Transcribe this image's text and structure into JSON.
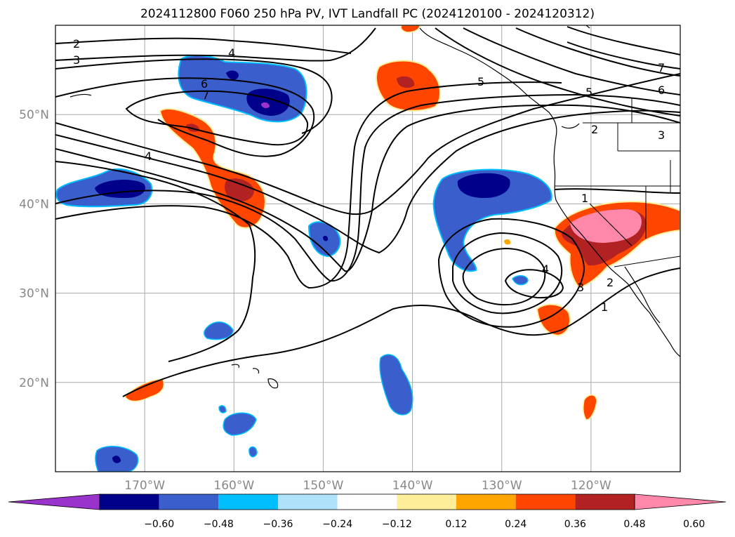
{
  "title": "2024112800 F060 250 hPa PV, IVT Landfall PC (2024120100 - 2024120312)",
  "map": {
    "lon_range": [
      -180,
      -110
    ],
    "lat_range": [
      10,
      60
    ],
    "lon_ticks": [
      -170,
      -160,
      -150,
      -140,
      -130,
      -120
    ],
    "lat_ticks": [
      20,
      30,
      40,
      50
    ],
    "lon_labels": [
      "170°W",
      "160°W",
      "150°W",
      "140°W",
      "130°W",
      "120°W"
    ],
    "lat_labels": [
      "20°N",
      "30°N",
      "40°N",
      "50°N"
    ],
    "grid": true,
    "contour_labels": [
      "2",
      "3",
      "4",
      "6",
      "7",
      "4",
      "5",
      "6",
      "7",
      "2",
      "3",
      "1",
      "4",
      "2",
      "1",
      "3",
      "5"
    ]
  },
  "colorbar": {
    "ticks": [
      "−0.60",
      "−0.48",
      "−0.36",
      "−0.24",
      "−0.12",
      "0.12",
      "0.24",
      "0.36",
      "0.48",
      "0.60"
    ],
    "colors": [
      "#9933cc",
      "#00008b",
      "#3a5fcd",
      "#00bfff",
      "#aee2fa",
      "#ffffff",
      "#ffee99",
      "#ffa500",
      "#ff4500",
      "#b22222",
      "#ff88aa"
    ]
  }
}
